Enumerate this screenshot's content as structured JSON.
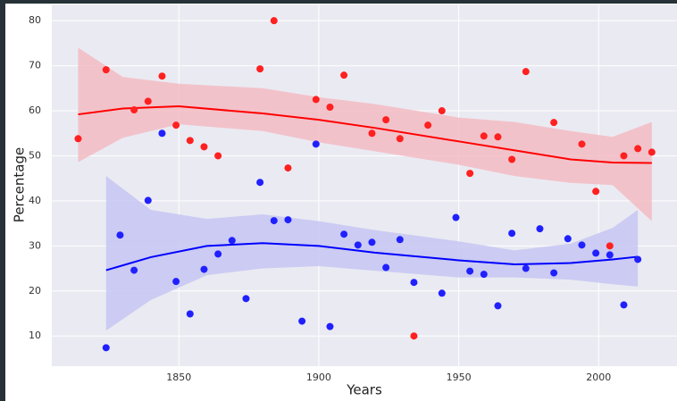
{
  "chart_data": {
    "type": "scatter",
    "x_label": "Years",
    "y_label": "Percentage",
    "xlim": [
      1804.6,
      2028
    ],
    "ylim": [
      3.3,
      83.6
    ],
    "xticks": [
      1850,
      1900,
      1950,
      2000
    ],
    "yticks": [
      10,
      20,
      30,
      40,
      50,
      60,
      70,
      80
    ],
    "grid": true,
    "series": [
      {
        "color": "#ff2020",
        "x": [
          1814,
          1824,
          1834,
          1839,
          1844,
          1849,
          1854,
          1859,
          1864,
          1879,
          1884,
          1889,
          1899,
          1904,
          1909,
          1919,
          1924,
          1929,
          1934,
          1939,
          1944,
          1954,
          1959,
          1964,
          1969,
          1974,
          1984,
          1994,
          1999,
          2004,
          2009,
          2014,
          2019
        ],
        "values": [
          53.8,
          69.1,
          60.2,
          62.1,
          67.7,
          56.8,
          53.4,
          52.0,
          50.0,
          69.3,
          80,
          47.3,
          62.5,
          60.8,
          67.9,
          55.0,
          58.0,
          53.8,
          10,
          56.8,
          60.0,
          46.1,
          54.4,
          54.2,
          49.2,
          68.7,
          57.4,
          52.6,
          42.1,
          30.0,
          50.0,
          51.6,
          50.8
        ],
        "fit": {
          "color": "#ff0000",
          "band_color": "#f4b8bf",
          "x": [
            1814,
            1830,
            1850,
            1880,
            1900,
            1920,
            1950,
            1970,
            1990,
            2005,
            2019
          ],
          "values": [
            59.2,
            60.5,
            61.0,
            59.4,
            58.0,
            56.2,
            53.2,
            51.2,
            49.2,
            48.5,
            48.4
          ],
          "upper": [
            74,
            67.5,
            66,
            65,
            63,
            61.5,
            58.5,
            57.5,
            55.5,
            54.2,
            57.5
          ],
          "lower": [
            48.6,
            54,
            57,
            55.5,
            53,
            51,
            48,
            45.5,
            44,
            43.5,
            35.5
          ]
        }
      },
      {
        "color": "#2020ff",
        "x": [
          1824,
          1829,
          1834,
          1839,
          1844,
          1849,
          1854,
          1859,
          1864,
          1869,
          1874,
          1879,
          1884,
          1889,
          1894,
          1899,
          1904,
          1909,
          1914,
          1919,
          1924,
          1929,
          1934,
          1944,
          1949,
          1954,
          1959,
          1964,
          1969,
          1974,
          1979,
          1984,
          1989,
          1994,
          1999,
          2004,
          2009,
          2014
        ],
        "values": [
          7.4,
          32.4,
          24.6,
          40.1,
          55.0,
          22.1,
          14.9,
          24.8,
          28.2,
          31.2,
          18.3,
          44.1,
          35.6,
          35.8,
          13.3,
          52.6,
          12.1,
          32.6,
          30.2,
          30.8,
          25.2,
          31.4,
          21.9,
          19.5,
          36.3,
          24.4,
          23.7,
          16.7,
          32.8,
          25.0,
          33.8,
          24.0,
          31.6,
          30.2,
          28.4,
          28.0,
          16.9,
          27.0
        ],
        "fit": {
          "color": "#0000ff",
          "band_color": "#c3c3f2",
          "x": [
            1824,
            1840,
            1860,
            1880,
            1900,
            1920,
            1950,
            1970,
            1990,
            2005,
            2014
          ],
          "values": [
            24.6,
            27.5,
            30.0,
            30.6,
            30.0,
            28.5,
            26.8,
            25.9,
            26.2,
            27.0,
            27.6
          ],
          "upper": [
            45.5,
            38,
            36,
            37,
            35.5,
            33.5,
            31,
            29,
            30.5,
            34,
            38
          ],
          "lower": [
            11.2,
            18,
            23.5,
            25,
            25.5,
            24.5,
            23,
            23,
            22.5,
            21.5,
            21
          ]
        }
      }
    ]
  }
}
